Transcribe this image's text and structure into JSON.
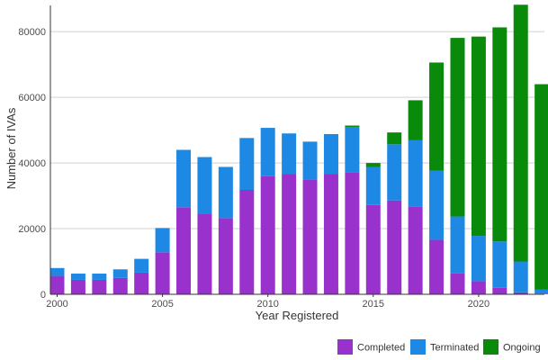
{
  "chart_data": {
    "type": "bar",
    "stacked": true,
    "xlabel": "Year Registered",
    "ylabel": "Number of IVAs",
    "ylim": [
      0,
      88000
    ],
    "y_ticks": [
      0,
      20000,
      40000,
      60000,
      80000
    ],
    "x_ticks": [
      2000,
      2005,
      2010,
      2015,
      2020
    ],
    "grid": "horizontal",
    "legend_position": "bottom-right",
    "categories": [
      2000,
      2001,
      2002,
      2003,
      2004,
      2005,
      2006,
      2007,
      2008,
      2009,
      2010,
      2011,
      2012,
      2013,
      2014,
      2015,
      2016,
      2017,
      2018,
      2019,
      2020,
      2021,
      2022,
      2023
    ],
    "series": [
      {
        "name": "Completed",
        "color": "#9932cc",
        "values": [
          5600,
          4400,
          4400,
          5000,
          6600,
          12800,
          26500,
          24400,
          23200,
          31800,
          36000,
          36600,
          35000,
          36600,
          37200,
          27200,
          28600,
          26800,
          16600,
          6400,
          4000,
          2000,
          600,
          200
        ]
      },
      {
        "name": "Terminated",
        "color": "#1e88e5",
        "values": [
          2400,
          1900,
          1900,
          2600,
          4200,
          7400,
          17500,
          17400,
          15600,
          15800,
          14700,
          12400,
          11500,
          12200,
          13800,
          11600,
          17100,
          20100,
          21000,
          17300,
          13800,
          14100,
          9400,
          1200
        ]
      },
      {
        "name": "Ongoing",
        "color": "#0a8a0a",
        "values": [
          0,
          0,
          0,
          0,
          0,
          0,
          0,
          0,
          0,
          0,
          0,
          0,
          0,
          0,
          400,
          1200,
          3600,
          12200,
          33000,
          54400,
          60700,
          65200,
          78200,
          62600
        ]
      }
    ]
  }
}
